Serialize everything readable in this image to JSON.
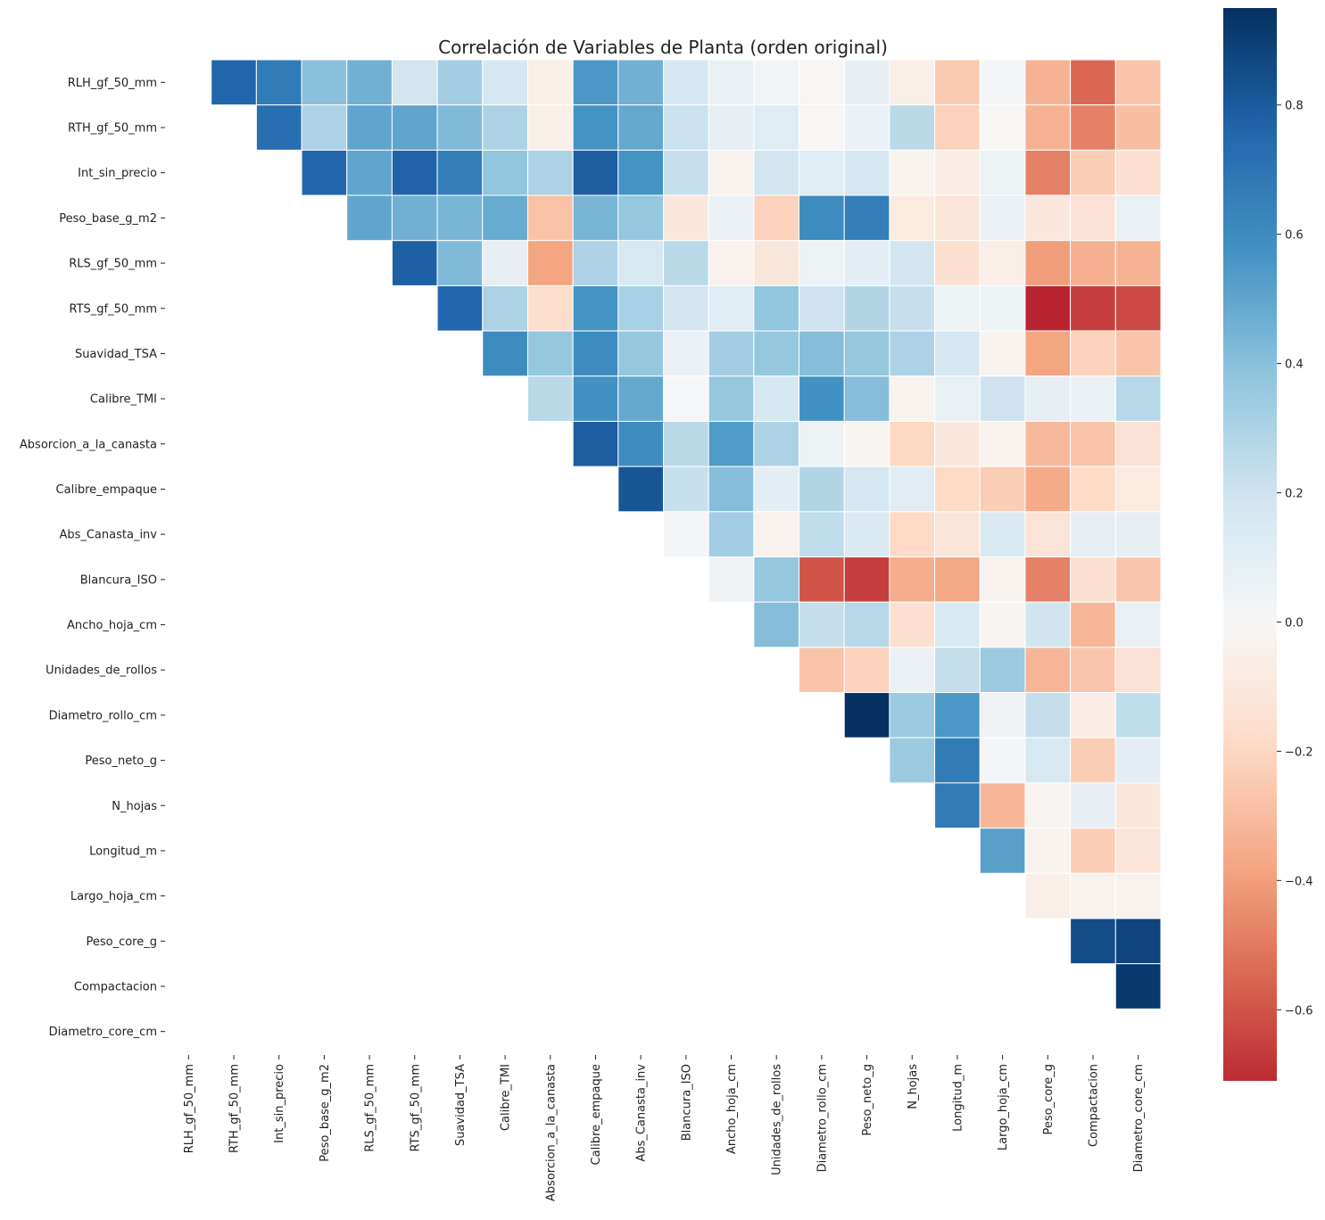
{
  "chart_data": {
    "type": "heatmap",
    "title": "Correlación de Variables de Planta (orden original)",
    "xlabel": "",
    "ylabel": "",
    "mask": "lower-triangle-and-diagonal",
    "colormap": "RdBu",
    "center": 0,
    "vmin": -0.71,
    "vmax": 0.95,
    "colorbar": {
      "ticks": [
        0.8,
        0.6,
        0.4,
        0.2,
        0.0,
        -0.2,
        -0.4,
        -0.6
      ],
      "tick_labels": [
        "0.8",
        "0.6",
        "0.4",
        "0.2",
        "0.0",
        "−0.2",
        "−0.4",
        "−0.6"
      ],
      "placement": "right"
    },
    "variables": [
      "RLH_gf_50_mm",
      "RTH_gf_50_mm",
      "Int_sin_precio",
      "Peso_base_g_m2",
      "RLS_gf_50_mm",
      "RTS_gf_50_mm",
      "Suavidad_TSA",
      "Calibre_TMI",
      "Absorcion_a_la_canasta",
      "Calibre_empaque",
      "Abs_Canasta_inv",
      "Blancura_ISO",
      "Ancho_hoja_cm",
      "Unidades_de_rollos",
      "Diametro_rollo_cm",
      "Peso_neto_g",
      "N_hojas",
      "Longitud_m",
      "Largo_hoja_cm",
      "Peso_core_g",
      "Compactacion",
      "Diametro_core_cm"
    ],
    "upper_triangle_rows": [
      [
        0.76,
        0.67,
        0.4,
        0.46,
        0.18,
        0.33,
        0.17,
        -0.05,
        0.55,
        0.46,
        0.17,
        0.07,
        0.03,
        -0.01,
        0.08,
        -0.06,
        -0.25,
        0.02,
        -0.33,
        -0.55,
        -0.27
      ],
      [
        0.72,
        0.3,
        0.5,
        0.5,
        0.42,
        0.3,
        -0.05,
        0.57,
        0.49,
        0.21,
        0.08,
        0.12,
        -0.01,
        0.06,
        0.26,
        -0.22,
        -0.01,
        -0.33,
        -0.48,
        -0.29
      ],
      [
        0.76,
        0.5,
        0.77,
        0.66,
        0.38,
        0.3,
        0.79,
        0.57,
        0.22,
        -0.03,
        0.18,
        0.12,
        0.17,
        -0.03,
        -0.07,
        0.05,
        -0.48,
        -0.24,
        -0.15
      ],
      [
        0.5,
        0.46,
        0.44,
        0.48,
        -0.28,
        0.44,
        0.37,
        -0.1,
        0.06,
        -0.22,
        0.6,
        0.66,
        -0.09,
        -0.12,
        0.06,
        -0.1,
        -0.14,
        0.07
      ],
      [
        0.78,
        0.42,
        0.08,
        -0.38,
        0.3,
        0.16,
        0.26,
        -0.04,
        -0.11,
        0.05,
        0.09,
        0.18,
        -0.15,
        -0.06,
        -0.4,
        -0.34,
        -0.33
      ],
      [
        0.76,
        0.3,
        -0.17,
        0.57,
        0.31,
        0.18,
        0.12,
        0.38,
        0.2,
        0.28,
        0.22,
        0.05,
        0.05,
        -0.73,
        -0.66,
        -0.63
      ],
      [
        0.6,
        0.37,
        0.6,
        0.37,
        0.06,
        0.33,
        0.37,
        0.41,
        0.37,
        0.3,
        0.17,
        -0.03,
        -0.38,
        -0.22,
        -0.27
      ],
      [
        0.26,
        0.58,
        0.49,
        0.01,
        0.37,
        0.17,
        0.58,
        0.41,
        -0.03,
        0.07,
        0.2,
        0.08,
        0.06,
        0.27
      ],
      [
        0.79,
        0.6,
        0.26,
        0.54,
        0.3,
        0.05,
        -0.02,
        -0.2,
        -0.1,
        -0.03,
        -0.31,
        -0.27,
        -0.14
      ],
      [
        0.82,
        0.22,
        0.41,
        0.09,
        0.28,
        0.17,
        0.11,
        -0.19,
        -0.24,
        -0.36,
        -0.19,
        -0.09
      ],
      [
        0.02,
        0.33,
        -0.04,
        0.24,
        0.14,
        -0.19,
        -0.12,
        0.14,
        -0.13,
        0.08,
        0.08
      ],
      [
        0.04,
        0.37,
        -0.6,
        -0.66,
        -0.35,
        -0.37,
        -0.03,
        -0.48,
        -0.15,
        -0.26
      ],
      [
        0.41,
        0.23,
        0.27,
        -0.15,
        0.15,
        -0.02,
        0.19,
        -0.32,
        0.07
      ],
      [
        -0.27,
        -0.22,
        0.06,
        0.23,
        0.35,
        -0.32,
        -0.26,
        -0.14
      ],
      [
        0.95,
        0.35,
        0.55,
        0.04,
        0.23,
        -0.07,
        0.24
      ],
      [
        0.35,
        0.67,
        0.02,
        0.16,
        -0.24,
        0.09
      ],
      [
        0.67,
        -0.32,
        -0.02,
        0.08,
        -0.1
      ],
      [
        0.52,
        -0.03,
        -0.24,
        -0.12
      ],
      [
        -0.06,
        -0.04,
        -0.04
      ],
      [
        0.85,
        0.88
      ],
      [
        0.92
      ],
      []
    ]
  }
}
